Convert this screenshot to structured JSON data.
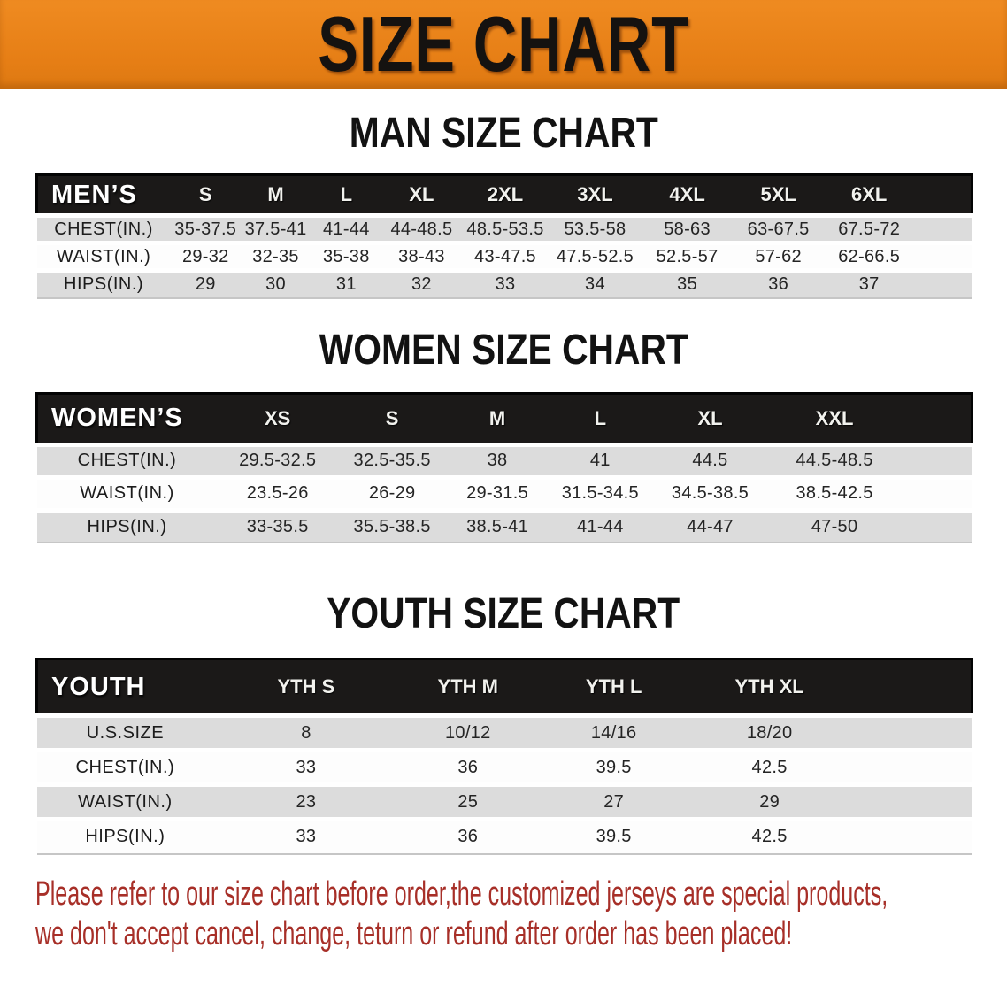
{
  "banner": {
    "title": "SIZE CHART"
  },
  "headings": {
    "men": "MAN SIZE CHART",
    "women": "WOMEN SIZE CHART",
    "youth": "YOUTH SIZE CHART"
  },
  "men": {
    "group_label": "MEN’S",
    "columns": [
      "S",
      "M",
      "L",
      "XL",
      "2XL",
      "3XL",
      "4XL",
      "5XL",
      "6XL"
    ],
    "rows": [
      {
        "label": "CHEST(IN.)",
        "values": [
          "35-37.5",
          "37.5-41",
          "41-44",
          "44-48.5",
          "48.5-53.5",
          "53.5-58",
          "58-63",
          "63-67.5",
          "67.5-72"
        ]
      },
      {
        "label": "WAIST(IN.)",
        "values": [
          "29-32",
          "32-35",
          "35-38",
          "38-43",
          "43-47.5",
          "47.5-52.5",
          "52.5-57",
          "57-62",
          "62-66.5"
        ]
      },
      {
        "label": "HIPS(IN.)",
        "values": [
          "29",
          "30",
          "31",
          "32",
          "33",
          "34",
          "35",
          "36",
          "37"
        ]
      }
    ]
  },
  "women": {
    "group_label": "WOMEN’S",
    "columns": [
      "XS",
      "S",
      "M",
      "L",
      "XL",
      "XXL"
    ],
    "rows": [
      {
        "label": "CHEST(IN.)",
        "values": [
          "29.5-32.5",
          "32.5-35.5",
          "38",
          "41",
          "44.5",
          "44.5-48.5"
        ]
      },
      {
        "label": "WAIST(IN.)",
        "values": [
          "23.5-26",
          "26-29",
          "29-31.5",
          "31.5-34.5",
          "34.5-38.5",
          "38.5-42.5"
        ]
      },
      {
        "label": "HIPS(IN.)",
        "values": [
          "33-35.5",
          "35.5-38.5",
          "38.5-41",
          "41-44",
          "44-47",
          "47-50"
        ]
      }
    ]
  },
  "youth": {
    "group_label": "YOUTH",
    "columns": [
      "YTH S",
      "YTH M",
      "YTH L",
      "YTH XL"
    ],
    "rows": [
      {
        "label": "U.S.SIZE",
        "values": [
          "8",
          "10/12",
          "14/16",
          "18/20"
        ]
      },
      {
        "label": "CHEST(IN.)",
        "values": [
          "33",
          "36",
          "39.5",
          "42.5"
        ]
      },
      {
        "label": "WAIST(IN.)",
        "values": [
          "23",
          "25",
          "27",
          "29"
        ]
      },
      {
        "label": "HIPS(IN.)",
        "values": [
          "33",
          "36",
          "39.5",
          "42.5"
        ]
      }
    ]
  },
  "note": {
    "line1": "Please refer to our size chart before order,the customized jerseys are special products,",
    "line2": "we don't accept cancel, change, teturn or refund after order has been placed!"
  },
  "colors": {
    "banner_bg": "#e6811c",
    "banner_text": "#151210",
    "header_bar_bg": "#1b1918",
    "header_bar_text": "#ffffff",
    "row_shaded": "#dcdcdc",
    "row_plain": "#fdfdfd",
    "note_text": "#a72f28"
  }
}
